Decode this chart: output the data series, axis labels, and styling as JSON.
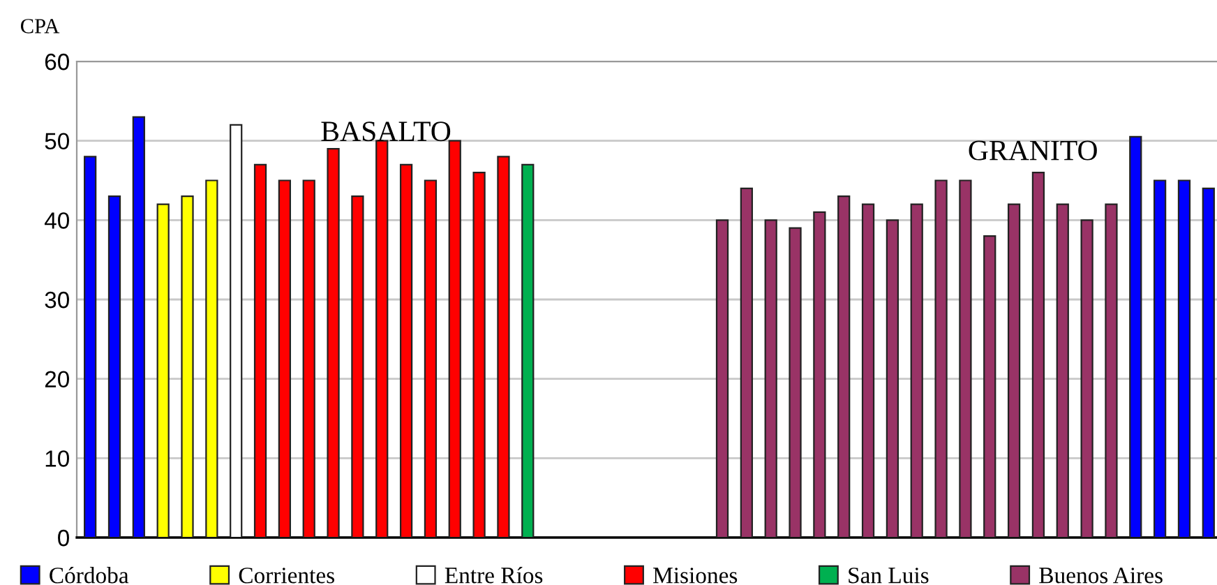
{
  "chart_data": {
    "type": "bar",
    "ylabel": "CPA",
    "categories": [
      null,
      null,
      null,
      null,
      null,
      null,
      null,
      null,
      null,
      null,
      null,
      null,
      null,
      null,
      null,
      null,
      null,
      null,
      null,
      null,
      null,
      null,
      null,
      null,
      null,
      null,
      null,
      null,
      null,
      null,
      null,
      null,
      null,
      null,
      null,
      null,
      null,
      null,
      null,
      null,
      null,
      null,
      null,
      null,
      null,
      null,
      null
    ],
    "series": [
      {
        "name": "Córdoba",
        "color": "#0000ff",
        "values": [
          48,
          43,
          53,
          null,
          null,
          null,
          null,
          null,
          null,
          null,
          null,
          null,
          null,
          null,
          null,
          null,
          null,
          null,
          null,
          null,
          null,
          null,
          null,
          null,
          null,
          null,
          null,
          null,
          null,
          null,
          null,
          null,
          null,
          null,
          null,
          null,
          null,
          null,
          null,
          null,
          null,
          null,
          null,
          50.5,
          45,
          45,
          44
        ]
      },
      {
        "name": "Corrientes",
        "color": "#ffff00",
        "values": [
          null,
          null,
          null,
          42,
          43,
          45,
          null,
          null,
          null,
          null,
          null,
          null,
          null,
          null,
          null,
          null,
          null,
          null,
          null,
          null,
          null,
          null,
          null,
          null,
          null,
          null,
          null,
          null,
          null,
          null,
          null,
          null,
          null,
          null,
          null,
          null,
          null,
          null,
          null,
          null,
          null,
          null,
          null,
          null,
          null,
          null,
          null
        ]
      },
      {
        "name": "Entre Ríos",
        "color": "#ffffff",
        "values": [
          null,
          null,
          null,
          null,
          null,
          null,
          52,
          null,
          null,
          null,
          null,
          null,
          null,
          null,
          null,
          null,
          null,
          null,
          null,
          null,
          null,
          null,
          null,
          null,
          null,
          null,
          null,
          null,
          null,
          null,
          null,
          null,
          null,
          null,
          null,
          null,
          null,
          null,
          null,
          null,
          null,
          null,
          null,
          null,
          null,
          null,
          null
        ]
      },
      {
        "name": "Misiones",
        "color": "#ff0000",
        "values": [
          null,
          null,
          null,
          null,
          null,
          null,
          null,
          47,
          45,
          45,
          49,
          43,
          50,
          47,
          45,
          50,
          46,
          48,
          null,
          null,
          null,
          null,
          null,
          null,
          null,
          null,
          null,
          null,
          null,
          null,
          null,
          null,
          null,
          null,
          null,
          null,
          null,
          null,
          null,
          null,
          null,
          null,
          null,
          null,
          null,
          null,
          null
        ]
      },
      {
        "name": "San Luis",
        "color": "#00b050",
        "values": [
          null,
          null,
          null,
          null,
          null,
          null,
          null,
          null,
          null,
          null,
          null,
          null,
          null,
          null,
          null,
          null,
          null,
          null,
          47,
          null,
          null,
          null,
          null,
          null,
          null,
          null,
          null,
          null,
          null,
          null,
          null,
          null,
          null,
          null,
          null,
          null,
          null,
          null,
          null,
          null,
          null,
          null,
          null,
          null,
          null,
          null,
          null
        ]
      },
      {
        "name": "Buenos Aires",
        "color": "#993366",
        "values": [
          null,
          null,
          null,
          null,
          null,
          null,
          null,
          null,
          null,
          null,
          null,
          null,
          null,
          null,
          null,
          null,
          null,
          null,
          null,
          null,
          null,
          null,
          null,
          null,
          null,
          null,
          40,
          44,
          40,
          39,
          41,
          43,
          42,
          40,
          42,
          45,
          45,
          38,
          42,
          46,
          42,
          40,
          42,
          null,
          null,
          null,
          null
        ]
      }
    ],
    "annotations": [
      "BASALTO",
      "GRANITO"
    ],
    "ylim": [
      0,
      60
    ],
    "yticks": [
      0,
      10,
      20,
      30,
      40,
      50,
      60
    ],
    "grid": "y",
    "legend": "bottom"
  }
}
